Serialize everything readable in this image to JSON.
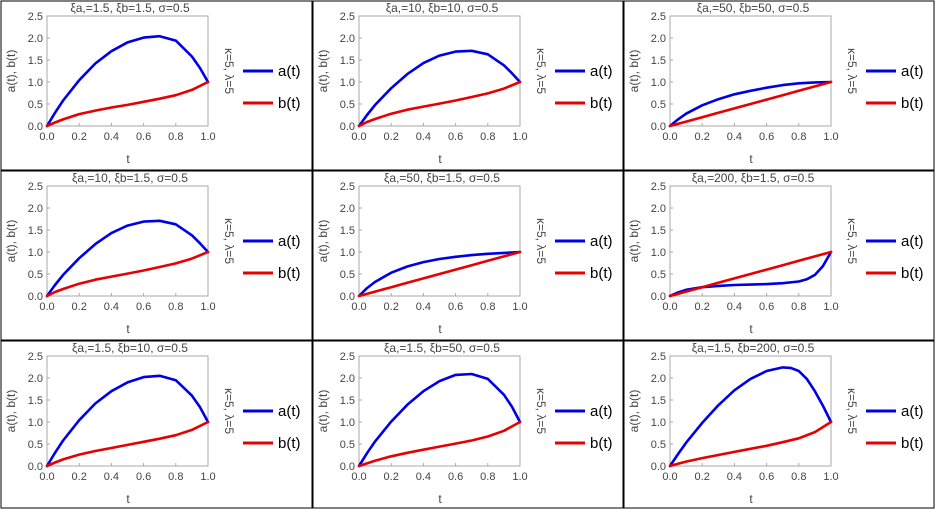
{
  "figure": {
    "x_label": "t",
    "y_label": "a(t), b(t)",
    "side_label": "κ=5, λ=5",
    "legend": [
      "a(t)",
      "b(t)"
    ],
    "colors": {
      "a": "#0000e6",
      "b": "#e60000",
      "border": "#000000",
      "frame": "#aaaaaa"
    }
  },
  "chart_data": [
    {
      "type": "line",
      "title": "ξa,=1.5, ξb=1.5, σ=0.5",
      "xlim": [
        0,
        1
      ],
      "ylim": [
        0,
        2.5
      ],
      "xticks": [
        "0.0",
        "0.2",
        "0.4",
        "0.6",
        "0.8",
        "1.0"
      ],
      "yticks": [
        "0.0",
        "0.5",
        "1.0",
        "1.5",
        "2.0",
        "2.5"
      ],
      "series": [
        {
          "name": "a(t)",
          "x": [
            0,
            0.05,
            0.1,
            0.2,
            0.3,
            0.4,
            0.5,
            0.6,
            0.7,
            0.8,
            0.9,
            0.95,
            1.0
          ],
          "y": [
            0,
            0.3,
            0.58,
            1.04,
            1.42,
            1.7,
            1.9,
            2.01,
            2.04,
            1.94,
            1.58,
            1.32,
            1.0
          ]
        },
        {
          "name": "b(t)",
          "x": [
            0,
            0.05,
            0.1,
            0.2,
            0.3,
            0.4,
            0.5,
            0.6,
            0.7,
            0.8,
            0.9,
            1.0
          ],
          "y": [
            0,
            0.08,
            0.15,
            0.27,
            0.35,
            0.42,
            0.48,
            0.55,
            0.62,
            0.7,
            0.82,
            1.0
          ]
        }
      ]
    },
    {
      "type": "line",
      "title": "ξa,=10, ξb=10, σ=0.5",
      "xlim": [
        0,
        1
      ],
      "ylim": [
        0,
        2.5
      ],
      "xticks": [
        "0.0",
        "0.2",
        "0.4",
        "0.6",
        "0.8",
        "1.0"
      ],
      "yticks": [
        "0.0",
        "0.5",
        "1.0",
        "1.5",
        "2.0",
        "2.5"
      ],
      "series": [
        {
          "name": "a(t)",
          "x": [
            0,
            0.05,
            0.1,
            0.2,
            0.3,
            0.4,
            0.5,
            0.6,
            0.7,
            0.8,
            0.9,
            0.95,
            1.0
          ],
          "y": [
            0,
            0.25,
            0.48,
            0.86,
            1.18,
            1.43,
            1.6,
            1.69,
            1.71,
            1.63,
            1.38,
            1.2,
            1.0
          ]
        },
        {
          "name": "b(t)",
          "x": [
            0,
            0.05,
            0.1,
            0.2,
            0.3,
            0.4,
            0.5,
            0.6,
            0.7,
            0.8,
            0.9,
            1.0
          ],
          "y": [
            0,
            0.09,
            0.16,
            0.28,
            0.37,
            0.44,
            0.51,
            0.58,
            0.66,
            0.74,
            0.85,
            1.0
          ]
        }
      ]
    },
    {
      "type": "line",
      "title": "ξa,=50, ξb=50, σ=0.5",
      "xlim": [
        0,
        1
      ],
      "ylim": [
        0,
        2.5
      ],
      "xticks": [
        "0.0",
        "0.2",
        "0.4",
        "0.6",
        "0.8",
        "1.0"
      ],
      "yticks": [
        "0.0",
        "0.5",
        "1.0",
        "1.5",
        "2.0",
        "2.5"
      ],
      "series": [
        {
          "name": "a(t)",
          "x": [
            0,
            0.05,
            0.1,
            0.2,
            0.3,
            0.4,
            0.5,
            0.6,
            0.7,
            0.8,
            0.9,
            1.0
          ],
          "y": [
            0,
            0.15,
            0.28,
            0.47,
            0.61,
            0.72,
            0.8,
            0.87,
            0.93,
            0.97,
            0.99,
            1.0
          ]
        },
        {
          "name": "b(t)",
          "x": [
            0,
            0.1,
            0.2,
            0.3,
            0.4,
            0.5,
            0.6,
            0.7,
            0.8,
            0.9,
            1.0
          ],
          "y": [
            0,
            0.1,
            0.2,
            0.3,
            0.4,
            0.5,
            0.6,
            0.7,
            0.8,
            0.9,
            1.0
          ]
        }
      ]
    },
    {
      "type": "line",
      "title": "ξa,=10, ξb=1.5, σ=0.5",
      "xlim": [
        0,
        1
      ],
      "ylim": [
        0,
        2.5
      ],
      "xticks": [
        "0.0",
        "0.2",
        "0.4",
        "0.6",
        "0.8",
        "1.0"
      ],
      "yticks": [
        "0.0",
        "0.5",
        "1.0",
        "1.5",
        "2.0",
        "2.5"
      ],
      "series": [
        {
          "name": "a(t)",
          "x": [
            0,
            0.05,
            0.1,
            0.2,
            0.3,
            0.4,
            0.5,
            0.6,
            0.7,
            0.8,
            0.9,
            0.95,
            1.0
          ],
          "y": [
            0,
            0.25,
            0.48,
            0.86,
            1.18,
            1.43,
            1.6,
            1.69,
            1.71,
            1.63,
            1.38,
            1.2,
            1.0
          ]
        },
        {
          "name": "b(t)",
          "x": [
            0,
            0.05,
            0.1,
            0.2,
            0.3,
            0.4,
            0.5,
            0.6,
            0.7,
            0.8,
            0.9,
            1.0
          ],
          "y": [
            0,
            0.09,
            0.16,
            0.28,
            0.37,
            0.44,
            0.51,
            0.58,
            0.66,
            0.74,
            0.85,
            1.0
          ]
        }
      ]
    },
    {
      "type": "line",
      "title": "ξa,=50, ξb=1.5, σ=0.5",
      "xlim": [
        0,
        1
      ],
      "ylim": [
        0,
        2.5
      ],
      "xticks": [
        "0.0",
        "0.2",
        "0.4",
        "0.6",
        "0.8",
        "1.0"
      ],
      "yticks": [
        "0.0",
        "0.5",
        "1.0",
        "1.5",
        "2.0",
        "2.5"
      ],
      "series": [
        {
          "name": "a(t)",
          "x": [
            0,
            0.05,
            0.1,
            0.2,
            0.3,
            0.4,
            0.5,
            0.6,
            0.7,
            0.8,
            0.9,
            1.0
          ],
          "y": [
            0,
            0.18,
            0.32,
            0.53,
            0.67,
            0.77,
            0.84,
            0.89,
            0.93,
            0.96,
            0.98,
            1.0
          ]
        },
        {
          "name": "b(t)",
          "x": [
            0,
            0.1,
            0.2,
            0.3,
            0.4,
            0.5,
            0.6,
            0.7,
            0.8,
            0.9,
            1.0
          ],
          "y": [
            0,
            0.1,
            0.2,
            0.3,
            0.4,
            0.5,
            0.6,
            0.7,
            0.8,
            0.9,
            1.0
          ]
        }
      ]
    },
    {
      "type": "line",
      "title": "ξa,=200, ξb=1.5, σ=0.5",
      "xlim": [
        0,
        1
      ],
      "ylim": [
        0,
        2.5
      ],
      "xticks": [
        "0.0",
        "0.2",
        "0.4",
        "0.6",
        "0.8",
        "1.0"
      ],
      "yticks": [
        "0.0",
        "0.5",
        "1.0",
        "1.5",
        "2.0",
        "2.5"
      ],
      "series": [
        {
          "name": "a(t)",
          "x": [
            0,
            0.05,
            0.1,
            0.2,
            0.3,
            0.4,
            0.5,
            0.6,
            0.7,
            0.8,
            0.85,
            0.9,
            0.95,
            1.0
          ],
          "y": [
            0,
            0.08,
            0.14,
            0.2,
            0.23,
            0.25,
            0.26,
            0.27,
            0.29,
            0.33,
            0.38,
            0.48,
            0.68,
            1.0
          ]
        },
        {
          "name": "b(t)",
          "x": [
            0,
            0.1,
            0.2,
            0.3,
            0.4,
            0.5,
            0.6,
            0.7,
            0.8,
            0.9,
            1.0
          ],
          "y": [
            0,
            0.1,
            0.2,
            0.3,
            0.4,
            0.5,
            0.6,
            0.7,
            0.8,
            0.9,
            1.0
          ]
        }
      ]
    },
    {
      "type": "line",
      "title": "ξa,=1.5, ξb=10, σ=0.5",
      "xlim": [
        0,
        1
      ],
      "ylim": [
        0,
        2.5
      ],
      "xticks": [
        "0.0",
        "0.2",
        "0.4",
        "0.6",
        "0.8",
        "1.0"
      ],
      "yticks": [
        "0.0",
        "0.5",
        "1.0",
        "1.5",
        "2.0",
        "2.5"
      ],
      "series": [
        {
          "name": "a(t)",
          "x": [
            0,
            0.05,
            0.1,
            0.2,
            0.3,
            0.4,
            0.5,
            0.6,
            0.7,
            0.8,
            0.9,
            0.95,
            1.0
          ],
          "y": [
            0,
            0.3,
            0.58,
            1.04,
            1.42,
            1.7,
            1.9,
            2.02,
            2.05,
            1.95,
            1.6,
            1.34,
            1.0
          ]
        },
        {
          "name": "b(t)",
          "x": [
            0,
            0.05,
            0.1,
            0.2,
            0.3,
            0.4,
            0.5,
            0.6,
            0.7,
            0.8,
            0.9,
            1.0
          ],
          "y": [
            0,
            0.08,
            0.15,
            0.26,
            0.34,
            0.41,
            0.48,
            0.55,
            0.62,
            0.7,
            0.82,
            1.0
          ]
        }
      ]
    },
    {
      "type": "line",
      "title": "ξa,=1.5, ξb=50, σ=0.5",
      "xlim": [
        0,
        1
      ],
      "ylim": [
        0,
        2.5
      ],
      "xticks": [
        "0.0",
        "0.2",
        "0.4",
        "0.6",
        "0.8",
        "1.0"
      ],
      "yticks": [
        "0.0",
        "0.5",
        "1.0",
        "1.5",
        "2.0",
        "2.5"
      ],
      "series": [
        {
          "name": "a(t)",
          "x": [
            0,
            0.05,
            0.1,
            0.2,
            0.3,
            0.4,
            0.5,
            0.6,
            0.7,
            0.8,
            0.9,
            0.95,
            1.0
          ],
          "y": [
            0,
            0.29,
            0.56,
            1.01,
            1.39,
            1.7,
            1.93,
            2.07,
            2.09,
            1.98,
            1.62,
            1.35,
            1.0
          ]
        },
        {
          "name": "b(t)",
          "x": [
            0,
            0.05,
            0.1,
            0.2,
            0.3,
            0.4,
            0.5,
            0.6,
            0.7,
            0.8,
            0.9,
            1.0
          ],
          "y": [
            0,
            0.06,
            0.12,
            0.22,
            0.3,
            0.37,
            0.44,
            0.51,
            0.58,
            0.67,
            0.8,
            1.0
          ]
        }
      ]
    },
    {
      "type": "line",
      "title": "ξa,=1.5, ξb=200, σ=0.5",
      "xlim": [
        0,
        1
      ],
      "ylim": [
        0,
        2.5
      ],
      "xticks": [
        "0.0",
        "0.2",
        "0.4",
        "0.6",
        "0.8",
        "1.0"
      ],
      "yticks": [
        "0.0",
        "0.5",
        "1.0",
        "1.5",
        "2.0",
        "2.5"
      ],
      "series": [
        {
          "name": "a(t)",
          "x": [
            0,
            0.05,
            0.1,
            0.2,
            0.3,
            0.4,
            0.5,
            0.6,
            0.7,
            0.75,
            0.8,
            0.85,
            0.9,
            0.95,
            1.0
          ],
          "y": [
            0,
            0.27,
            0.53,
            0.98,
            1.38,
            1.72,
            1.98,
            2.16,
            2.24,
            2.23,
            2.16,
            1.98,
            1.7,
            1.37,
            1.0
          ]
        },
        {
          "name": "b(t)",
          "x": [
            0,
            0.05,
            0.1,
            0.2,
            0.3,
            0.4,
            0.5,
            0.6,
            0.7,
            0.8,
            0.9,
            1.0
          ],
          "y": [
            0,
            0.05,
            0.1,
            0.18,
            0.25,
            0.32,
            0.39,
            0.46,
            0.54,
            0.63,
            0.77,
            1.0
          ]
        }
      ]
    }
  ]
}
